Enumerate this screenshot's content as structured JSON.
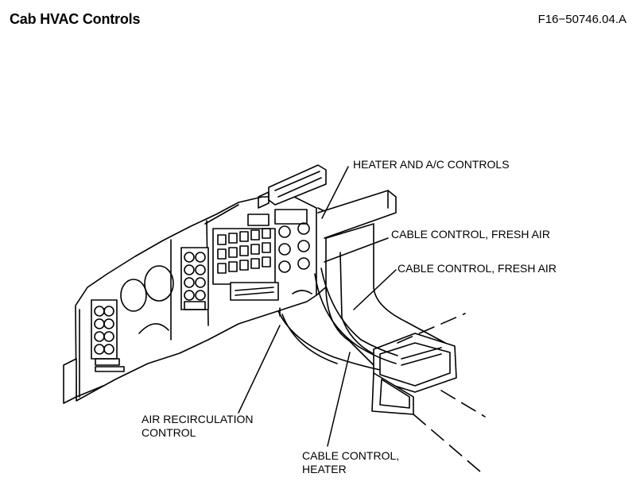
{
  "header": {
    "title": "Cab HVAC Controls",
    "figure_id": "F16−50746.04.A"
  },
  "callouts": {
    "heater_ac_controls": "HEATER AND A/C CONTROLS",
    "cable_fresh_air_1": "CABLE CONTROL, FRESH AIR",
    "cable_fresh_air_2": "CABLE CONTROL, FRESH AIR",
    "air_recirculation_line1": "AIR RECIRCULATION",
    "air_recirculation_line2": "CONTROL",
    "cable_heater_line1": "CABLE CONTROL,",
    "cable_heater_line2": "HEATER"
  }
}
